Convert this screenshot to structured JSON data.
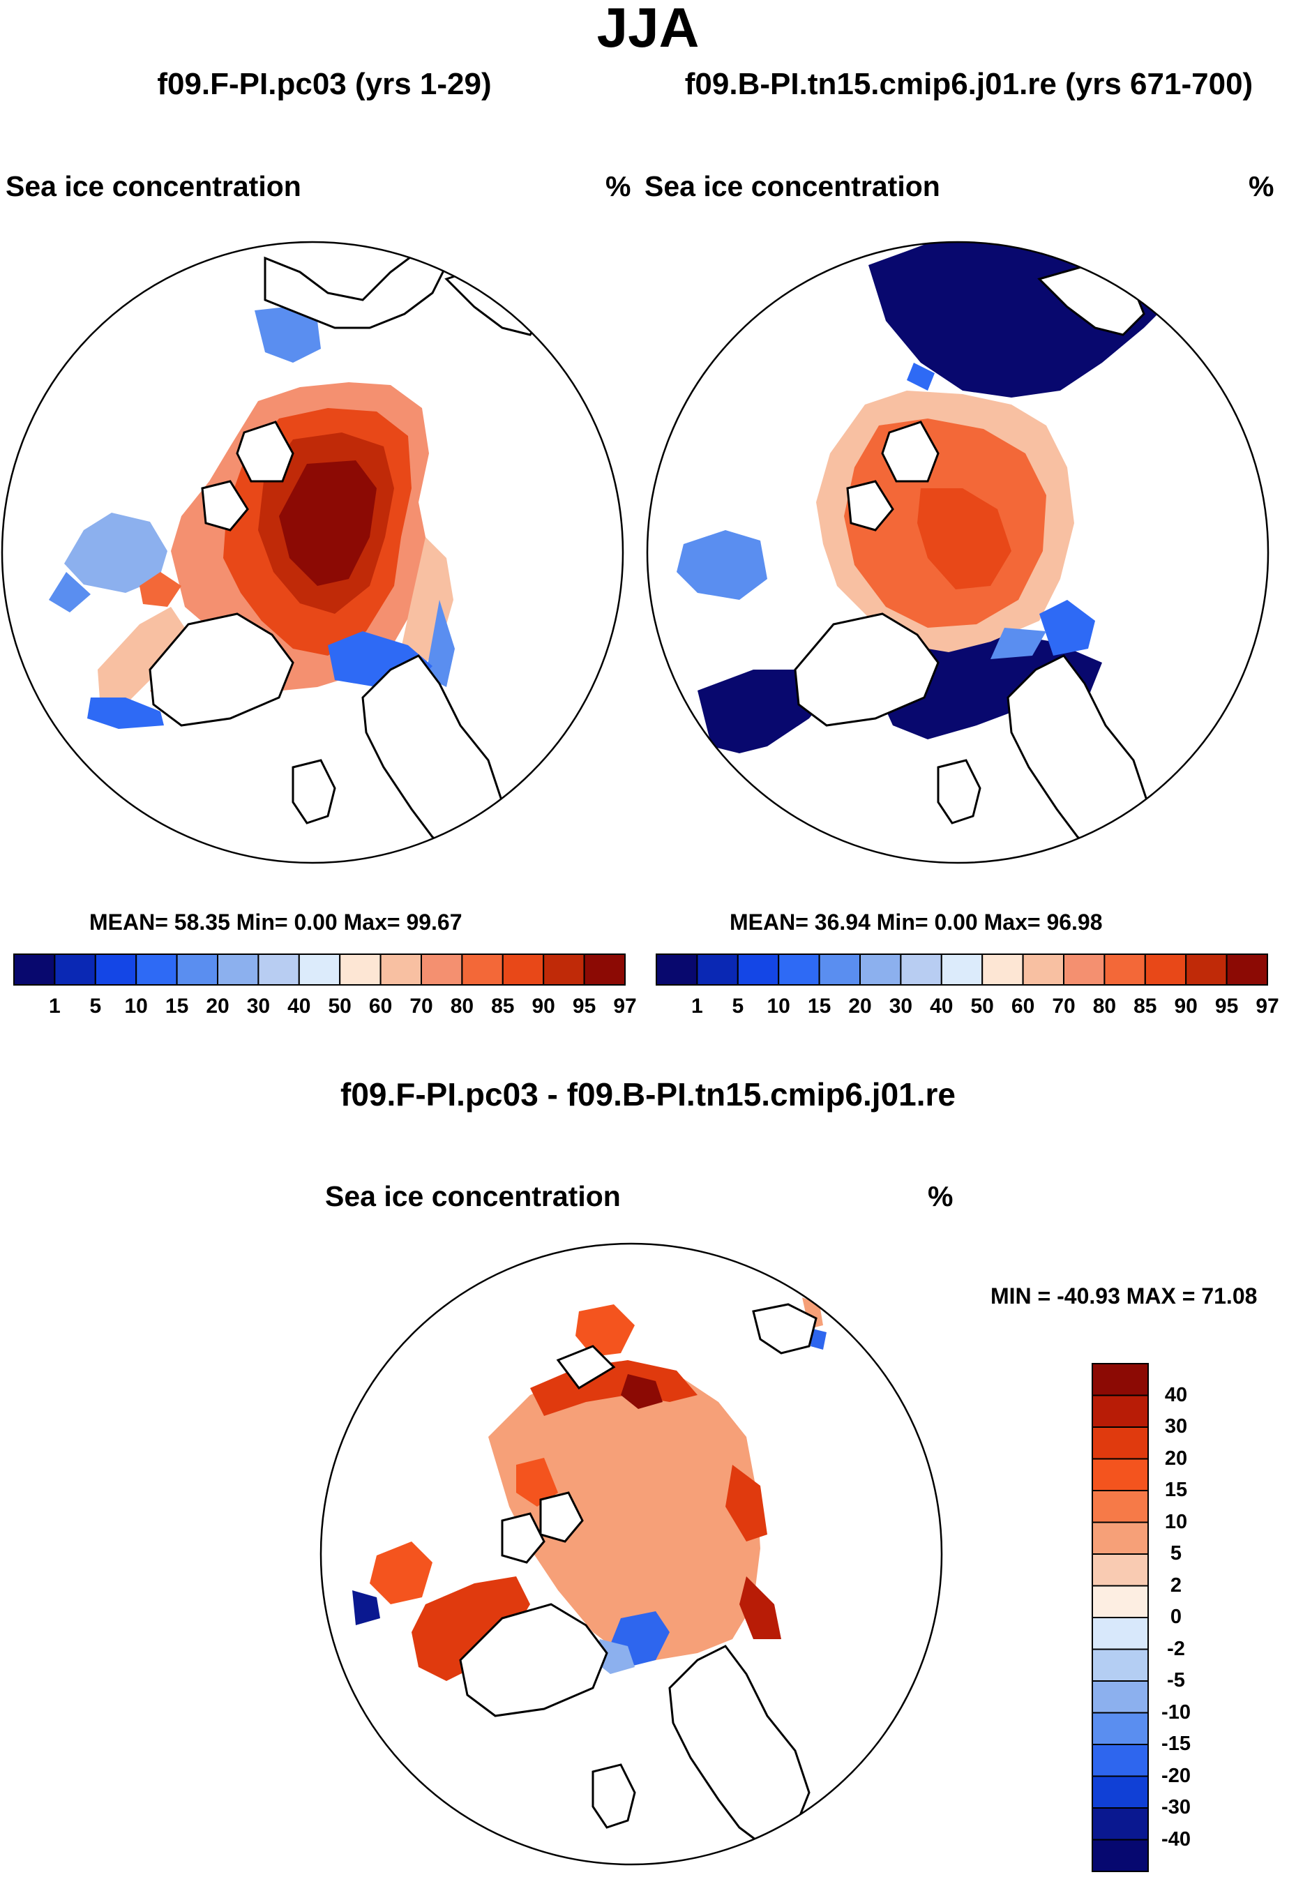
{
  "figure": {
    "season": "JJA",
    "panel_left_title": "f09.F-PI.pc03 (yrs 1-29)",
    "panel_right_title": "f09.B-PI.tn15.cmip6.j01.re (yrs 671-700)",
    "diff_title": "f09.F-PI.pc03 - f09.B-PI.tn15.cmip6.j01.re"
  },
  "panels": {
    "left": {
      "variable": "Sea ice concentration",
      "units": "%",
      "stats": "MEAN=  58.35  Min=   0.00  Max=  99.67"
    },
    "right": {
      "variable": "Sea ice concentration",
      "units": "%",
      "stats": "MEAN=  36.94  Min=   0.00  Max=  96.98"
    },
    "diff": {
      "variable": "Sea ice concentration",
      "units": "%",
      "stats": "MIN = -40.93 MAX =  71.08"
    }
  },
  "chart_data": [
    {
      "type": "heatmap",
      "title": "f09.F-PI.pc03 (yrs 1-29)",
      "subtitle": "Sea ice concentration",
      "units": "%",
      "projection": "north polar stereographic",
      "mean": 58.35,
      "min": 0.0,
      "max": 99.67,
      "colorbar_levels": [
        1,
        5,
        10,
        15,
        20,
        30,
        40,
        50,
        60,
        70,
        80,
        85,
        90,
        95,
        97
      ]
    },
    {
      "type": "heatmap",
      "title": "f09.B-PI.tn15.cmip6.j01.re (yrs 671-700)",
      "subtitle": "Sea ice concentration",
      "units": "%",
      "projection": "north polar stereographic",
      "mean": 36.94,
      "min": 0.0,
      "max": 96.98,
      "colorbar_levels": [
        1,
        5,
        10,
        15,
        20,
        30,
        40,
        50,
        60,
        70,
        80,
        85,
        90,
        95,
        97
      ]
    },
    {
      "type": "heatmap",
      "title": "f09.F-PI.pc03 - f09.B-PI.tn15.cmip6.j01.re",
      "subtitle": "Sea ice concentration",
      "units": "%",
      "projection": "north polar stereographic",
      "min": -40.93,
      "max": 71.08,
      "colorbar_levels": [
        40,
        30,
        20,
        15,
        10,
        5,
        2,
        0,
        -2,
        -5,
        -10,
        -15,
        -20,
        -30,
        -40
      ]
    }
  ],
  "colors": {
    "sic_scale": [
      "#08086e",
      "#0a28b4",
      "#1446e6",
      "#2e6af5",
      "#5a8ef0",
      "#8cb0ee",
      "#b8cdf2",
      "#dcebfb",
      "#fde6d4",
      "#f8c0a2",
      "#f49070",
      "#f36838",
      "#e84818",
      "#c02a08",
      "#8c0a04"
    ],
    "diff_scale": [
      "#8c0a04",
      "#b81c06",
      "#e03a0e",
      "#f4541e",
      "#f67a48",
      "#f6a078",
      "#f9cbb2",
      "#fdeee2",
      "#d8e8fb",
      "#b4cef3",
      "#8cb0ee",
      "#5a8ef0",
      "#2e66ee",
      "#1040d6",
      "#0a1890",
      "#060870"
    ]
  }
}
